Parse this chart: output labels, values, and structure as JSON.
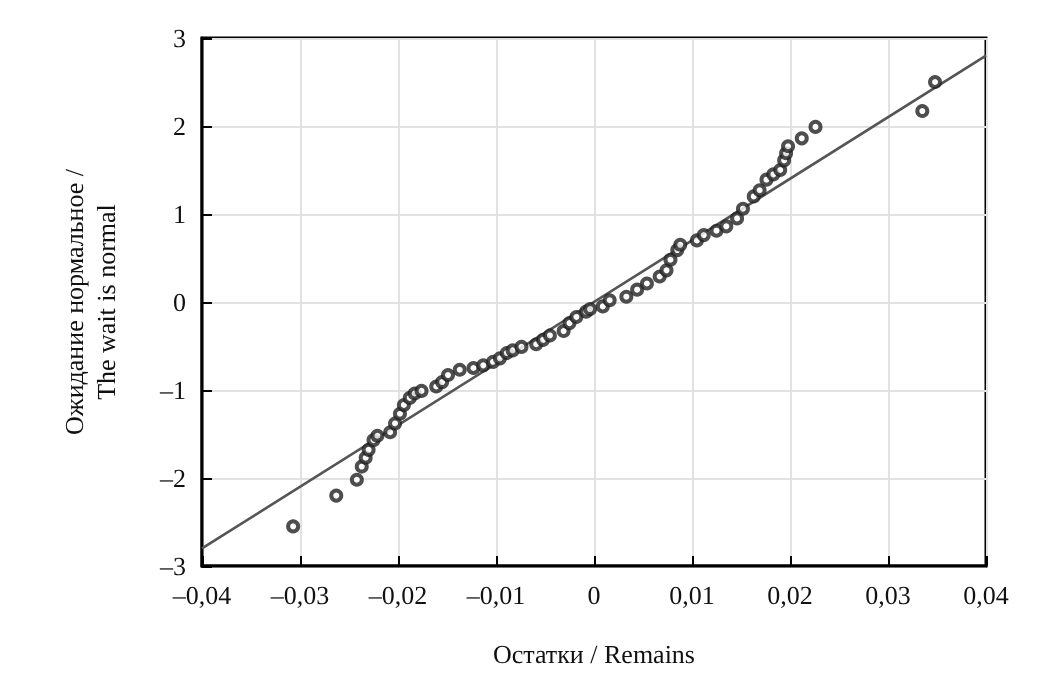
{
  "chart_data": {
    "type": "scatter",
    "xlabel": "Остатки / Remains",
    "ylabel": "Ожидание нормальное /\nThe wait is normal",
    "xlim": [
      -0.04,
      0.04
    ],
    "ylim": [
      -3,
      3
    ],
    "xticks": [
      {
        "value": -0.04,
        "label": "–0,04"
      },
      {
        "value": -0.03,
        "label": "–0,03"
      },
      {
        "value": -0.02,
        "label": "–0,02"
      },
      {
        "value": -0.01,
        "label": "–0,01"
      },
      0,
      {
        "value": 0.01,
        "label": "0,01"
      },
      {
        "value": 0.02,
        "label": "0,02"
      },
      {
        "value": 0.03,
        "label": "0,03"
      },
      {
        "value": 0.04,
        "label": "0,04"
      }
    ],
    "yticks": [
      {
        "value": -3,
        "label": "–3"
      },
      {
        "value": -2,
        "label": "–2"
      },
      {
        "value": -1,
        "label": "–1"
      },
      0,
      1,
      2,
      3
    ],
    "grid": true,
    "marker": "circle",
    "series": [
      {
        "color": "#222222",
        "x": [
          -0.0307,
          -0.0263,
          -0.0242,
          -0.0237,
          -0.0233,
          -0.023,
          -0.0225,
          -0.0221,
          -0.0208,
          -0.0203,
          -0.0198,
          -0.0194,
          -0.0188,
          -0.0183,
          -0.0176,
          -0.0161,
          -0.0155,
          -0.0149,
          -0.0137,
          -0.0123,
          -0.0113,
          -0.0103,
          -0.0096,
          -0.0089,
          -0.0083,
          -0.0074,
          -0.0059,
          -0.0052,
          -0.0045,
          -0.0031,
          -0.0025,
          -0.0018,
          -0.0008,
          -0.0004,
          0.0009,
          0.0016,
          0.0033,
          0.0044,
          0.0054,
          0.0067,
          0.0074,
          0.0078,
          0.0085,
          0.0088,
          0.0105,
          0.0112,
          0.0125,
          0.0135,
          0.0146,
          0.0152,
          0.0163,
          0.0169,
          0.0176,
          0.0183,
          0.019,
          0.0194,
          0.0196,
          0.0198,
          0.0212,
          0.0226,
          0.0335,
          0.0348
        ],
        "values": [
          -2.55,
          -2.2,
          -2.02,
          -1.87,
          -1.77,
          -1.68,
          -1.57,
          -1.52,
          -1.48,
          -1.38,
          -1.27,
          -1.17,
          -1.09,
          -1.04,
          -1.01,
          -0.96,
          -0.91,
          -0.83,
          -0.77,
          -0.75,
          -0.72,
          -0.68,
          -0.64,
          -0.58,
          -0.55,
          -0.51,
          -0.48,
          -0.43,
          -0.38,
          -0.33,
          -0.24,
          -0.17,
          -0.11,
          -0.08,
          -0.05,
          0.02,
          0.06,
          0.14,
          0.21,
          0.29,
          0.36,
          0.48,
          0.59,
          0.65,
          0.7,
          0.76,
          0.81,
          0.86,
          0.95,
          1.06,
          1.2,
          1.27,
          1.39,
          1.45,
          1.5,
          1.61,
          1.69,
          1.77,
          1.86,
          1.99,
          2.17,
          2.5
        ]
      },
      {
        "type": "line",
        "color": "#555555",
        "marker": "none",
        "x": [
          -0.04,
          0.04
        ],
        "values": [
          -2.8,
          2.8
        ]
      }
    ]
  }
}
